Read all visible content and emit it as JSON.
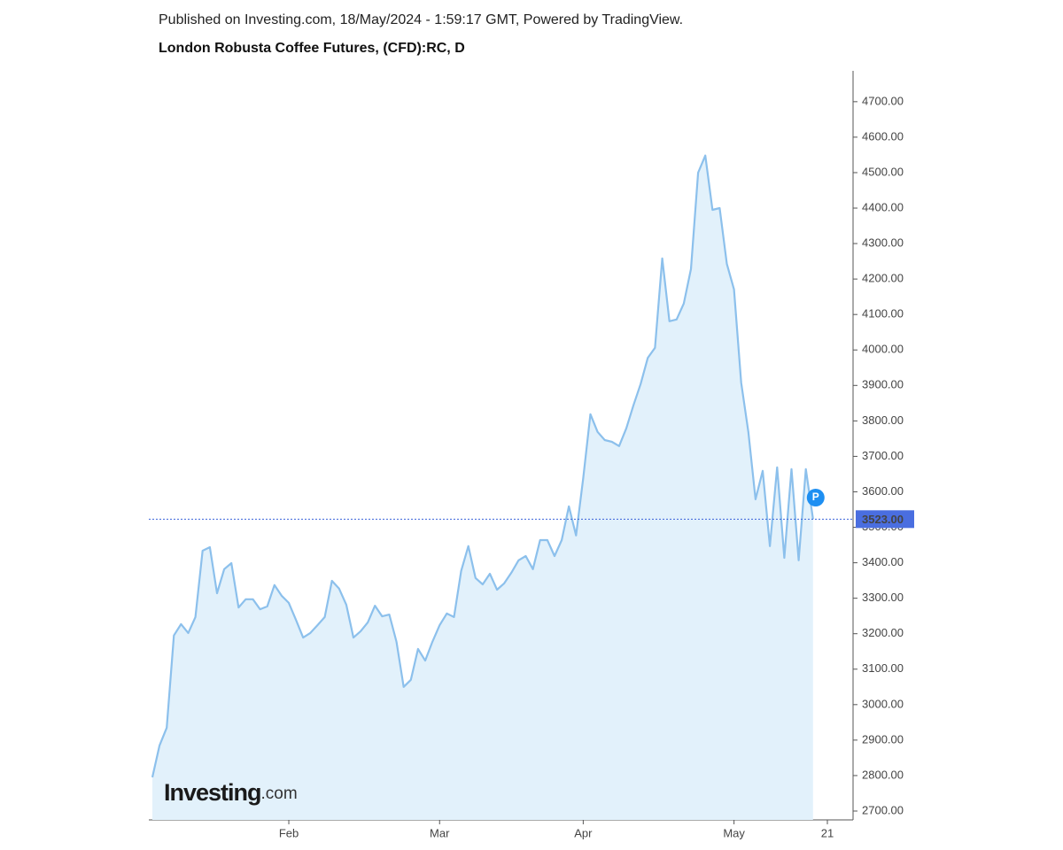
{
  "header": "Published on Investing.com, 18/May/2024 - 1:59:17 GMT, Powered by TradingView.",
  "chart_data": {
    "type": "area",
    "title": "London Robusta Coffee Futures, (CFD):RC, D",
    "categories": [
      null,
      null,
      null,
      null,
      null,
      null,
      null,
      null,
      null,
      null,
      null,
      null,
      null,
      null,
      null,
      null,
      null,
      null,
      null,
      "Feb",
      null,
      null,
      null,
      null,
      null,
      null,
      null,
      null,
      null,
      null,
      null,
      null,
      null,
      null,
      null,
      null,
      null,
      null,
      null,
      null,
      "Mar",
      null,
      null,
      null,
      null,
      null,
      null,
      null,
      null,
      null,
      null,
      null,
      null,
      null,
      null,
      null,
      null,
      null,
      null,
      null,
      "Apr",
      null,
      null,
      null,
      null,
      null,
      null,
      null,
      null,
      null,
      null,
      null,
      null,
      null,
      null,
      null,
      null,
      null,
      null,
      null,
      null,
      "May",
      null,
      null,
      null,
      null,
      null,
      null,
      null,
      null,
      null,
      null,
      null,
      null,
      "21"
    ],
    "values": [
      2795,
      2885,
      2935,
      3195,
      3227,
      3202,
      3247,
      3434,
      3444,
      3314,
      3382,
      3399,
      3274,
      3297,
      3297,
      3269,
      3277,
      3337,
      3307,
      3287,
      3239,
      3189,
      3202,
      3224,
      3247,
      3349,
      3327,
      3282,
      3189,
      3207,
      3232,
      3279,
      3249,
      3254,
      3177,
      3050,
      3070,
      3157,
      3124,
      3177,
      3224,
      3257,
      3247,
      3377,
      3447,
      3357,
      3339,
      3369,
      3324,
      3342,
      3372,
      3407,
      3419,
      3382,
      3464,
      3464,
      3419,
      3464,
      3559,
      3477,
      3639,
      3819,
      3769,
      3746,
      3741,
      3729,
      3779,
      3844,
      3904,
      3978,
      4006,
      4258,
      4081,
      4086,
      4131,
      4228,
      4500,
      4548,
      4395,
      4400,
      4243,
      4171,
      3908,
      3769,
      3579,
      3659,
      3447,
      3669,
      3414,
      3664,
      3407,
      3664,
      3523,
      null,
      null
    ],
    "color": "#8cc0ec",
    "fill": "#e2f1fb",
    "ylim": [
      2675,
      4787
    ],
    "yticks": [
      {
        "value": 2700,
        "label": "2700.00"
      },
      {
        "value": 2800,
        "label": "2800.00"
      },
      {
        "value": 2900,
        "label": "2900.00"
      },
      {
        "value": 3000,
        "label": "3000.00"
      },
      {
        "value": 3100,
        "label": "3100.00"
      },
      {
        "value": 3200,
        "label": "3200.00"
      },
      {
        "value": 3300,
        "label": "3300.00"
      },
      {
        "value": 3400,
        "label": "3400.00"
      },
      {
        "value": 3500,
        "label": "3500.00"
      },
      {
        "value": 3600,
        "label": "3600.00"
      },
      {
        "value": 3700,
        "label": "3700.00"
      },
      {
        "value": 3800,
        "label": "3800.00"
      },
      {
        "value": 3900,
        "label": "3900.00"
      },
      {
        "value": 4000,
        "label": "4000.00"
      },
      {
        "value": 4100,
        "label": "4100.00"
      },
      {
        "value": 4200,
        "label": "4200.00"
      },
      {
        "value": 4300,
        "label": "4300.00"
      },
      {
        "value": 4400,
        "label": "4400.00"
      },
      {
        "value": 4500,
        "label": "4500.00"
      },
      {
        "value": 4600,
        "label": "4600.00"
      },
      {
        "value": 4700,
        "label": "4700.00"
      }
    ],
    "last_price": {
      "value": 3523,
      "label": "3523.00"
    },
    "marker_label": "P",
    "watermark": {
      "brand": "Investing",
      "suffix": ".com"
    }
  }
}
